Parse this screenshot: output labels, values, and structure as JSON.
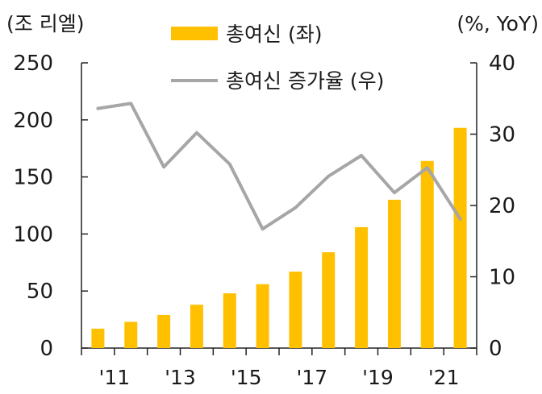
{
  "chart_data": {
    "type": "bar",
    "title": "",
    "left_axis_unit": "(조 리엘)",
    "right_axis_unit": "(%, YoY)",
    "x_tick_labels": [
      "'11",
      "'13",
      "'15",
      "'17",
      "'19",
      "'21"
    ],
    "x": [
      2011,
      2012,
      2013,
      2014,
      2015,
      2016,
      2017,
      2018,
      2019,
      2020,
      2021,
      2022
    ],
    "left_ylim": [
      0,
      250
    ],
    "left_yticks": [
      0,
      50,
      100,
      150,
      200,
      250
    ],
    "right_ylim": [
      0,
      40
    ],
    "right_yticks": [
      0,
      10,
      20,
      30,
      40
    ],
    "legend_position": "top-center",
    "series": [
      {
        "name": "총여신 (좌)",
        "type": "bar",
        "axis": "left",
        "color": "#FFC000",
        "values": [
          17,
          23,
          29,
          38,
          48,
          56,
          67,
          84,
          106,
          130,
          164,
          193
        ]
      },
      {
        "name": "총여신 증가율 (우)",
        "type": "line",
        "axis": "right",
        "color": "#A6A6A6",
        "values": [
          33.6,
          34.3,
          25.4,
          30.2,
          25.8,
          16.7,
          19.7,
          24.1,
          27.0,
          21.8,
          25.3,
          18.1
        ]
      }
    ]
  }
}
